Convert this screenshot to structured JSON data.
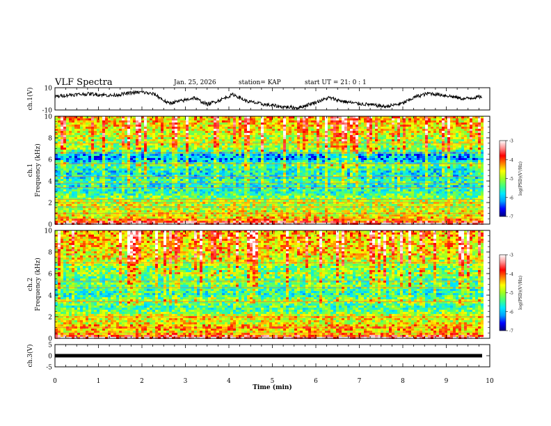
{
  "header": {
    "title": "VLF Spectra",
    "date": "Jan. 25, 2026",
    "station": "station= KAP",
    "start_ut": "start UT =  21: 0  : 1"
  },
  "colors": {
    "colorbar_stops": [
      "#000080",
      "#0000ff",
      "#00a0ff",
      "#00e8ff",
      "#40ff80",
      "#a0ff20",
      "#ffff00",
      "#ff8000",
      "#ff0000",
      "#ff9090",
      "#ffffff"
    ],
    "trace": "#000000"
  },
  "chart_data": [
    {
      "type": "line",
      "panel": "ch1-waveform",
      "title": "",
      "ylabel": "ch.1(V)",
      "ylim": [
        -10,
        10
      ],
      "yticks": [
        "10",
        "-10"
      ],
      "xlim": [
        0,
        10
      ],
      "trend_x": [
        0,
        0.3,
        0.8,
        1.3,
        1.8,
        2.0,
        2.3,
        2.6,
        2.9,
        3.2,
        3.5,
        3.8,
        4.1,
        4.4,
        4.8,
        5.2,
        5.6,
        6.0,
        6.3,
        6.6,
        6.9,
        7.2,
        7.6,
        8.0,
        8.3,
        8.6,
        9.0,
        9.4,
        9.8
      ],
      "trend_y": [
        2,
        3.5,
        4.5,
        3,
        5.5,
        6,
        4,
        -4,
        -2,
        1,
        -5,
        -1,
        4,
        -2,
        -5,
        -7,
        -8,
        -3,
        1,
        -2,
        -4,
        -5,
        -7,
        -4,
        2,
        5,
        3,
        0,
        2
      ]
    },
    {
      "type": "heatmap",
      "panel": "ch1-spectrogram",
      "ylabel": "ch.1\nFrequency (kHz)",
      "ylim": [
        0,
        10
      ],
      "yticks": [
        "0",
        "2",
        "4",
        "6",
        "8",
        "10"
      ],
      "xlim": [
        0,
        10
      ],
      "colorbar": {
        "label": "log(PSD)(V²/Hz)",
        "range": [
          -7,
          -3
        ],
        "ticks": [
          "-3",
          "-4",
          "-5",
          "-6",
          "-7"
        ]
      },
      "profile_khz": [
        0,
        0.5,
        1,
        1.5,
        2,
        2.5,
        3,
        3.5,
        4,
        4.5,
        5,
        5.5,
        6,
        6.5,
        7,
        7.5,
        8,
        8.5,
        9,
        9.5,
        10
      ],
      "profile_log_psd": [
        -3.2,
        -4.5,
        -4.7,
        -4.9,
        -4.8,
        -5.2,
        -5.6,
        -5.7,
        -5.5,
        -5.8,
        -5.7,
        -5.3,
        -6.2,
        -6.0,
        -5.0,
        -5.0,
        -4.9,
        -4.7,
        -4.6,
        -4.5,
        -4.4
      ],
      "lines_khz": [
        0.5,
        1.0,
        1.6,
        2.0,
        2.3,
        3.4,
        3.8,
        4.4,
        5.6,
        6.6,
        7.5
      ]
    },
    {
      "type": "heatmap",
      "panel": "ch2-spectrogram",
      "ylabel": "ch.2\nFrequency (kHz)",
      "ylim": [
        0,
        10
      ],
      "yticks": [
        "0",
        "2",
        "4",
        "6",
        "8",
        "10"
      ],
      "xlim": [
        0,
        10
      ],
      "colorbar": {
        "label": "log(PSD)(V²/Hz)",
        "range": [
          -7,
          -3
        ],
        "ticks": [
          "-3",
          "-4",
          "-5",
          "-6",
          "-7"
        ]
      },
      "profile_khz": [
        0,
        0.5,
        1,
        1.5,
        2,
        2.5,
        3,
        3.5,
        4,
        4.5,
        5,
        5.5,
        6,
        6.5,
        7,
        7.5,
        8,
        8.5,
        9,
        9.5,
        10
      ],
      "profile_log_psd": [
        -3.2,
        -4.6,
        -4.3,
        -4.8,
        -4.6,
        -5.3,
        -5.4,
        -5.0,
        -5.6,
        -5.5,
        -5.2,
        -5.4,
        -5.0,
        -5.3,
        -4.9,
        -4.7,
        -4.6,
        -4.5,
        -4.5,
        -4.4,
        -4.3
      ],
      "lines_khz": [
        0.5,
        1.0,
        2.0,
        3.4,
        4.7,
        5.3,
        7.0
      ]
    },
    {
      "type": "line",
      "panel": "ch3-waveform",
      "ylabel": "ch.3(V)",
      "ylim": [
        -5,
        5
      ],
      "yticks": [
        "5",
        "0",
        "-5"
      ],
      "xlim": [
        0,
        10
      ],
      "level_v": 0
    }
  ],
  "xaxis": {
    "label": "Time (min)",
    "ticks": [
      "0",
      "1",
      "2",
      "3",
      "4",
      "5",
      "6",
      "7",
      "8",
      "9",
      "10"
    ]
  }
}
